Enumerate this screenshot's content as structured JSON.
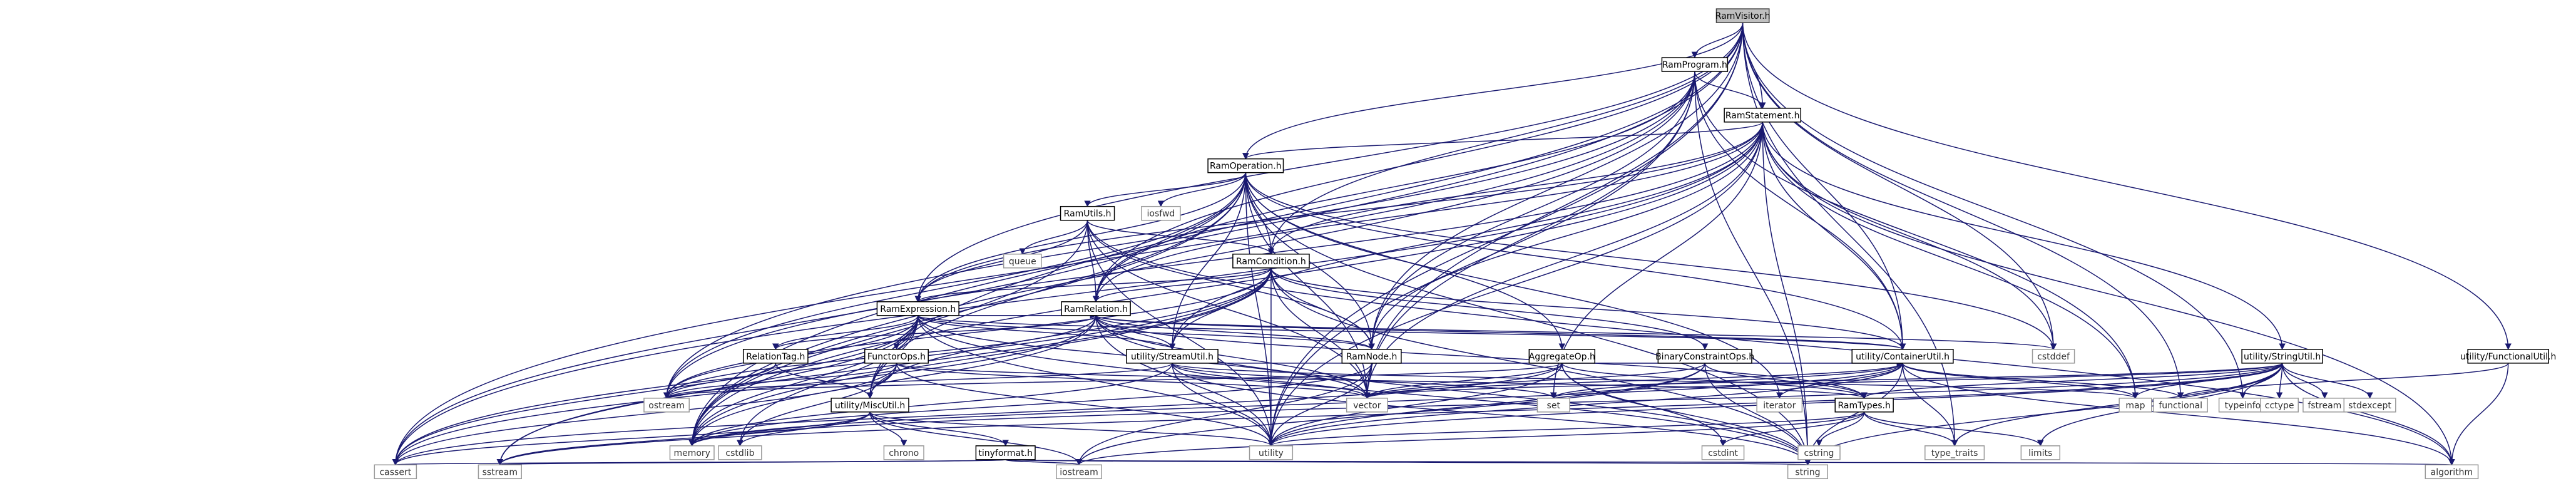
{
  "diagram": {
    "colors": {
      "edge": "#191970",
      "root_fill": "#bfbfbf",
      "internal_border": "#000000",
      "system_border": "#999999"
    },
    "nodes": [
      {
        "id": "ramvisitor",
        "label": "RamVisitor.h",
        "kind": "root"
      },
      {
        "id": "ramprogram",
        "label": "RamProgram.h",
        "kind": "internal"
      },
      {
        "id": "ramstatement",
        "label": "RamStatement.h",
        "kind": "internal"
      },
      {
        "id": "ramoperation",
        "label": "RamOperation.h",
        "kind": "internal"
      },
      {
        "id": "ramutils",
        "label": "RamUtils.h",
        "kind": "internal"
      },
      {
        "id": "ramcondition",
        "label": "RamCondition.h",
        "kind": "internal"
      },
      {
        "id": "ramexpression",
        "label": "RamExpression.h",
        "kind": "internal"
      },
      {
        "id": "ramrelation",
        "label": "RamRelation.h",
        "kind": "internal"
      },
      {
        "id": "ramnode",
        "label": "RamNode.h",
        "kind": "internal"
      },
      {
        "id": "relationtag",
        "label": "RelationTag.h",
        "kind": "internal"
      },
      {
        "id": "functorops",
        "label": "FunctorOps.h",
        "kind": "internal"
      },
      {
        "id": "streamutil",
        "label": "utility/StreamUtil.h",
        "kind": "internal"
      },
      {
        "id": "miscutil",
        "label": "utility/MiscUtil.h",
        "kind": "internal"
      },
      {
        "id": "tinyformat",
        "label": "tinyformat.h",
        "kind": "internal"
      },
      {
        "id": "aggregateop",
        "label": "AggregateOp.h",
        "kind": "internal"
      },
      {
        "id": "binaryconstraintops",
        "label": "BinaryConstraintOps.h",
        "kind": "internal"
      },
      {
        "id": "containerutil",
        "label": "utility/ContainerUtil.h",
        "kind": "internal"
      },
      {
        "id": "ramtypes",
        "label": "RamTypes.h",
        "kind": "internal"
      },
      {
        "id": "stringutil",
        "label": "utility/StringUtil.h",
        "kind": "internal"
      },
      {
        "id": "functionalutil",
        "label": "utility/FunctionalUtil.h",
        "kind": "internal"
      },
      {
        "id": "iosfwd",
        "label": "iosfwd",
        "kind": "system"
      },
      {
        "id": "queue",
        "label": "queue",
        "kind": "system"
      },
      {
        "id": "cstddef",
        "label": "cstddef",
        "kind": "system"
      },
      {
        "id": "ostream",
        "label": "ostream",
        "kind": "system"
      },
      {
        "id": "memory",
        "label": "memory",
        "kind": "system"
      },
      {
        "id": "cstdlib",
        "label": "cstdlib",
        "kind": "system"
      },
      {
        "id": "chrono",
        "label": "chrono",
        "kind": "system"
      },
      {
        "id": "cassert",
        "label": "cassert",
        "kind": "system"
      },
      {
        "id": "sstream",
        "label": "sstream",
        "kind": "system"
      },
      {
        "id": "iostream",
        "label": "iostream",
        "kind": "system"
      },
      {
        "id": "string",
        "label": "string",
        "kind": "system"
      },
      {
        "id": "utility",
        "label": "utility",
        "kind": "system"
      },
      {
        "id": "set",
        "label": "set",
        "kind": "system"
      },
      {
        "id": "vector",
        "label": "vector",
        "kind": "system"
      },
      {
        "id": "cstdint",
        "label": "cstdint",
        "kind": "system"
      },
      {
        "id": "iterator",
        "label": "iterator",
        "kind": "system"
      },
      {
        "id": "cstring",
        "label": "cstring",
        "kind": "system"
      },
      {
        "id": "type_traits",
        "label": "type_traits",
        "kind": "system"
      },
      {
        "id": "limits",
        "label": "limits",
        "kind": "system"
      },
      {
        "id": "map",
        "label": "map",
        "kind": "system"
      },
      {
        "id": "functional",
        "label": "functional",
        "kind": "system"
      },
      {
        "id": "typeinfo",
        "label": "typeinfo",
        "kind": "system"
      },
      {
        "id": "cctype",
        "label": "cctype",
        "kind": "system"
      },
      {
        "id": "fstream",
        "label": "fstream",
        "kind": "system"
      },
      {
        "id": "stdexcept",
        "label": "stdexcept",
        "kind": "system"
      },
      {
        "id": "algorithm",
        "label": "algorithm",
        "kind": "system"
      }
    ],
    "edges": [
      [
        "ramvisitor",
        "ramprogram"
      ],
      [
        "ramvisitor",
        "ramstatement"
      ],
      [
        "ramvisitor",
        "ramoperation"
      ],
      [
        "ramvisitor",
        "ramcondition"
      ],
      [
        "ramvisitor",
        "ramexpression"
      ],
      [
        "ramvisitor",
        "ramrelation"
      ],
      [
        "ramvisitor",
        "ramnode"
      ],
      [
        "ramvisitor",
        "miscutil"
      ],
      [
        "ramvisitor",
        "containerutil"
      ],
      [
        "ramvisitor",
        "functionalutil"
      ],
      [
        "ramvisitor",
        "cstddef"
      ],
      [
        "ramvisitor",
        "functional"
      ],
      [
        "ramvisitor",
        "typeinfo"
      ],
      [
        "ramvisitor",
        "type_traits"
      ],
      [
        "ramvisitor",
        "memory"
      ],
      [
        "ramvisitor",
        "vector"
      ],
      [
        "ramvisitor",
        "utility"
      ],
      [
        "ramprogram",
        "ramstatement"
      ],
      [
        "ramprogram",
        "ramrelation"
      ],
      [
        "ramprogram",
        "ramnode"
      ],
      [
        "ramprogram",
        "containerutil"
      ],
      [
        "ramprogram",
        "cassert"
      ],
      [
        "ramprogram",
        "map"
      ],
      [
        "ramprogram",
        "memory"
      ],
      [
        "ramprogram",
        "ostream"
      ],
      [
        "ramprogram",
        "string"
      ],
      [
        "ramprogram",
        "utility"
      ],
      [
        "ramprogram",
        "vector"
      ],
      [
        "ramstatement",
        "ramoperation"
      ],
      [
        "ramstatement",
        "ramcondition"
      ],
      [
        "ramstatement",
        "ramexpression"
      ],
      [
        "ramstatement",
        "ramrelation"
      ],
      [
        "ramstatement",
        "ramnode"
      ],
      [
        "ramstatement",
        "streamutil"
      ],
      [
        "ramstatement",
        "containerutil"
      ],
      [
        "ramstatement",
        "stringutil"
      ],
      [
        "ramstatement",
        "cassert"
      ],
      [
        "ramstatement",
        "cstddef"
      ],
      [
        "ramstatement",
        "map"
      ],
      [
        "ramstatement",
        "memory"
      ],
      [
        "ramstatement",
        "ostream"
      ],
      [
        "ramstatement",
        "string"
      ],
      [
        "ramstatement",
        "utility"
      ],
      [
        "ramstatement",
        "vector"
      ],
      [
        "ramstatement",
        "algorithm"
      ],
      [
        "ramstatement",
        "set"
      ],
      [
        "ramoperation",
        "ramutils"
      ],
      [
        "ramoperation",
        "ramcondition"
      ],
      [
        "ramoperation",
        "ramexpression"
      ],
      [
        "ramoperation",
        "ramrelation"
      ],
      [
        "ramoperation",
        "ramnode"
      ],
      [
        "ramoperation",
        "aggregateop"
      ],
      [
        "ramoperation",
        "streamutil"
      ],
      [
        "ramoperation",
        "miscutil"
      ],
      [
        "ramoperation",
        "containerutil"
      ],
      [
        "ramoperation",
        "iosfwd"
      ],
      [
        "ramoperation",
        "cassert"
      ],
      [
        "ramoperation",
        "cstddef"
      ],
      [
        "ramoperation",
        "memory"
      ],
      [
        "ramoperation",
        "ostream"
      ],
      [
        "ramoperation",
        "string"
      ],
      [
        "ramoperation",
        "utility"
      ],
      [
        "ramoperation",
        "vector"
      ],
      [
        "ramoperation",
        "iterator"
      ],
      [
        "ramutils",
        "ramcondition"
      ],
      [
        "ramutils",
        "ramexpression"
      ],
      [
        "ramutils",
        "ramnode"
      ],
      [
        "ramutils",
        "ramrelation"
      ],
      [
        "ramutils",
        "queue"
      ],
      [
        "ramutils",
        "memory"
      ],
      [
        "ramutils",
        "utility"
      ],
      [
        "ramutils",
        "vector"
      ],
      [
        "ramutils",
        "algorithm"
      ],
      [
        "ramcondition",
        "ramexpression"
      ],
      [
        "ramcondition",
        "ramrelation"
      ],
      [
        "ramcondition",
        "ramnode"
      ],
      [
        "ramcondition",
        "binaryconstraintops"
      ],
      [
        "ramcondition",
        "streamutil"
      ],
      [
        "ramcondition",
        "miscutil"
      ],
      [
        "ramcondition",
        "containerutil"
      ],
      [
        "ramcondition",
        "cassert"
      ],
      [
        "ramcondition",
        "memory"
      ],
      [
        "ramcondition",
        "ostream"
      ],
      [
        "ramcondition",
        "string"
      ],
      [
        "ramcondition",
        "utility"
      ],
      [
        "ramcondition",
        "vector"
      ],
      [
        "ramcondition",
        "sstream"
      ],
      [
        "ramexpression",
        "ramnode"
      ],
      [
        "ramexpression",
        "ramrelation"
      ],
      [
        "ramexpression",
        "functorops"
      ],
      [
        "ramexpression",
        "relationtag"
      ],
      [
        "ramexpression",
        "streamutil"
      ],
      [
        "ramexpression",
        "miscutil"
      ],
      [
        "ramexpression",
        "containerutil"
      ],
      [
        "ramexpression",
        "cassert"
      ],
      [
        "ramexpression",
        "memory"
      ],
      [
        "ramexpression",
        "ostream"
      ],
      [
        "ramexpression",
        "string"
      ],
      [
        "ramexpression",
        "utility"
      ],
      [
        "ramexpression",
        "vector"
      ],
      [
        "ramexpression",
        "sstream"
      ],
      [
        "ramexpression",
        "cstdlib"
      ],
      [
        "ramrelation",
        "ramnode"
      ],
      [
        "ramrelation",
        "relationtag"
      ],
      [
        "ramrelation",
        "ramtypes"
      ],
      [
        "ramrelation",
        "streamutil"
      ],
      [
        "ramrelation",
        "containerutil"
      ],
      [
        "ramrelation",
        "cassert"
      ],
      [
        "ramrelation",
        "memory"
      ],
      [
        "ramrelation",
        "ostream"
      ],
      [
        "ramrelation",
        "string"
      ],
      [
        "ramrelation",
        "utility"
      ],
      [
        "ramrelation",
        "vector"
      ],
      [
        "ramrelation",
        "cstddef"
      ],
      [
        "ramnode",
        "containerutil"
      ],
      [
        "ramnode",
        "iostream"
      ],
      [
        "ramnode",
        "vector"
      ],
      [
        "ramnode",
        "memory"
      ],
      [
        "ramnode",
        "utility"
      ],
      [
        "relationtag",
        "miscutil"
      ],
      [
        "relationtag",
        "ostream"
      ],
      [
        "functorops",
        "miscutil"
      ],
      [
        "functorops",
        "ramtypes"
      ],
      [
        "functorops",
        "cassert"
      ],
      [
        "functorops",
        "cstdlib"
      ],
      [
        "functorops",
        "ostream"
      ],
      [
        "functorops",
        "utility"
      ],
      [
        "functorops",
        "vector"
      ],
      [
        "streamutil",
        "containerutil"
      ],
      [
        "streamutil",
        "map"
      ],
      [
        "streamutil",
        "memory"
      ],
      [
        "streamutil",
        "ostream"
      ],
      [
        "streamutil",
        "set"
      ],
      [
        "streamutil",
        "string"
      ],
      [
        "streamutil",
        "utility"
      ],
      [
        "streamutil",
        "vector"
      ],
      [
        "miscutil",
        "tinyformat"
      ],
      [
        "miscutil",
        "cassert"
      ],
      [
        "miscutil",
        "chrono"
      ],
      [
        "miscutil",
        "cstdlib"
      ],
      [
        "miscutil",
        "iostream"
      ],
      [
        "miscutil",
        "memory"
      ],
      [
        "miscutil",
        "utility"
      ],
      [
        "miscutil",
        "sstream"
      ],
      [
        "tinyformat",
        "algorithm"
      ],
      [
        "tinyformat",
        "cassert"
      ],
      [
        "tinyformat",
        "iostream"
      ],
      [
        "tinyformat",
        "sstream"
      ],
      [
        "tinyformat",
        "string"
      ],
      [
        "aggregateop",
        "ramtypes"
      ],
      [
        "aggregateop",
        "cassert"
      ],
      [
        "aggregateop",
        "cstdint"
      ],
      [
        "aggregateop",
        "ostream"
      ],
      [
        "aggregateop",
        "string"
      ],
      [
        "aggregateop",
        "vector"
      ],
      [
        "aggregateop",
        "utility"
      ],
      [
        "binaryconstraintops",
        "ramtypes"
      ],
      [
        "binaryconstraintops",
        "iostream"
      ],
      [
        "binaryconstraintops",
        "string"
      ],
      [
        "binaryconstraintops",
        "vector"
      ],
      [
        "binaryconstraintops",
        "utility"
      ],
      [
        "containerutil",
        "algorithm"
      ],
      [
        "containerutil",
        "functional"
      ],
      [
        "containerutil",
        "iterator"
      ],
      [
        "containerutil",
        "map"
      ],
      [
        "containerutil",
        "memory"
      ],
      [
        "containerutil",
        "set"
      ],
      [
        "containerutil",
        "type_traits"
      ],
      [
        "containerutil",
        "utility"
      ],
      [
        "containerutil",
        "vector"
      ],
      [
        "containerutil",
        "string"
      ],
      [
        "ramtypes",
        "cstdint"
      ],
      [
        "ramtypes",
        "cstring"
      ],
      [
        "ramtypes",
        "iostream"
      ],
      [
        "ramtypes",
        "limits"
      ],
      [
        "ramtypes",
        "type_traits"
      ],
      [
        "ramtypes",
        "utility"
      ],
      [
        "stringutil",
        "ramtypes"
      ],
      [
        "stringutil",
        "algorithm"
      ],
      [
        "stringutil",
        "cctype"
      ],
      [
        "stringutil",
        "fstream"
      ],
      [
        "stringutil",
        "limits"
      ],
      [
        "stringutil",
        "map"
      ],
      [
        "stringutil",
        "memory"
      ],
      [
        "stringutil",
        "set"
      ],
      [
        "stringutil",
        "sstream"
      ],
      [
        "stringutil",
        "stdexcept"
      ],
      [
        "stringutil",
        "string"
      ],
      [
        "stringutil",
        "typeinfo"
      ],
      [
        "stringutil",
        "utility"
      ],
      [
        "stringutil",
        "vector"
      ],
      [
        "stringutil",
        "type_traits"
      ],
      [
        "functionalutil",
        "algorithm"
      ],
      [
        "functionalutil",
        "functional"
      ]
    ]
  }
}
